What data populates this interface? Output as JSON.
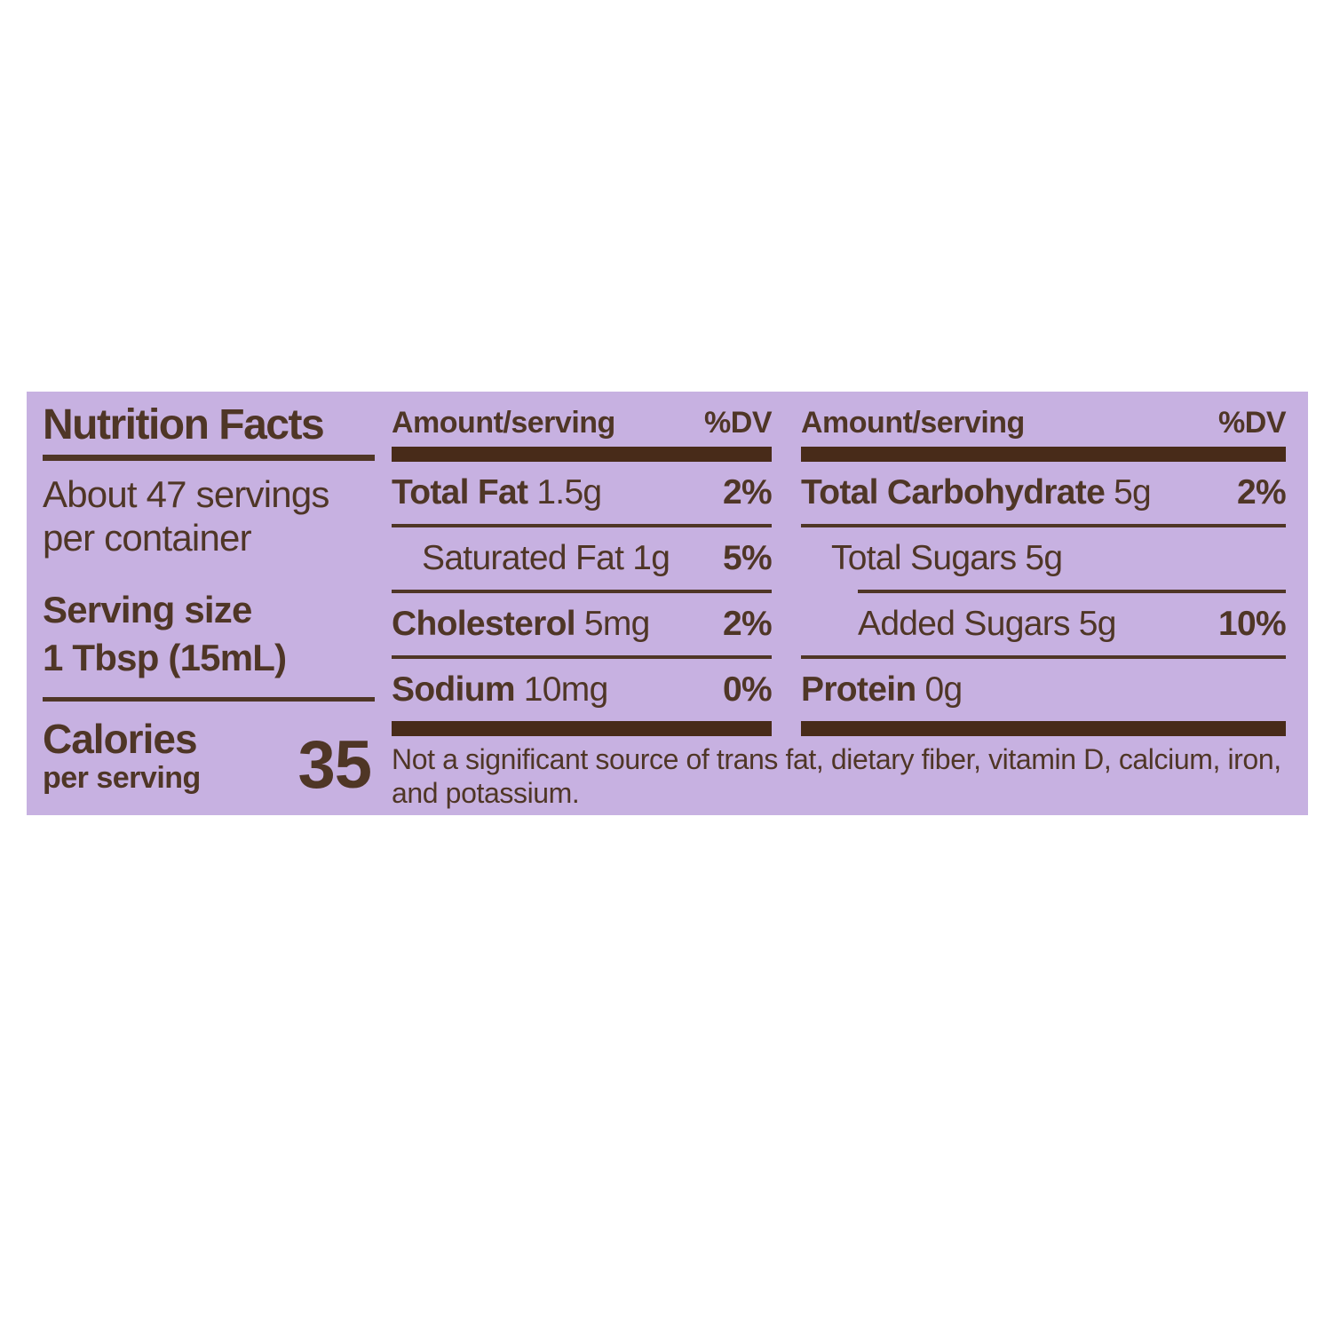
{
  "colors": {
    "canvas_bg": "#ffffff",
    "label_bg": "#c7b1e1",
    "text": "#4f3626",
    "bar": "#482b19"
  },
  "label": {
    "title": "Nutrition Facts",
    "servings_line1": "About 47 servings",
    "servings_line2": "per container",
    "serving_size_label": "Serving size",
    "serving_size_value": "1 Tbsp (15mL)",
    "calories_label": "Calories",
    "calories_sublabel": "per serving",
    "calories_value": "35",
    "col1": {
      "header_amount": "Amount/serving",
      "header_dv": "%DV",
      "rows": [
        {
          "name": "Total Fat",
          "amount": "1.5g",
          "dv": "2%"
        },
        {
          "name": "Saturated Fat",
          "amount": "1g",
          "dv": "5%"
        },
        {
          "name": "Cholesterol",
          "amount": "5mg",
          "dv": "2%"
        },
        {
          "name": "Sodium",
          "amount": "10mg",
          "dv": "0%"
        }
      ]
    },
    "col2": {
      "header_amount": "Amount/serving",
      "header_dv": "%DV",
      "rows": [
        {
          "name": "Total Carbohydrate",
          "amount": "5g",
          "dv": "2%"
        },
        {
          "name": "Total Sugars",
          "amount": "5g",
          "dv": ""
        },
        {
          "name": "Added Sugars",
          "amount": "5g",
          "dv": "10%"
        },
        {
          "name": "Protein",
          "amount": "0g",
          "dv": ""
        }
      ]
    },
    "footnote": "Not a significant source of trans fat, dietary fiber, vitamin D, calcium, iron, and potassium."
  }
}
